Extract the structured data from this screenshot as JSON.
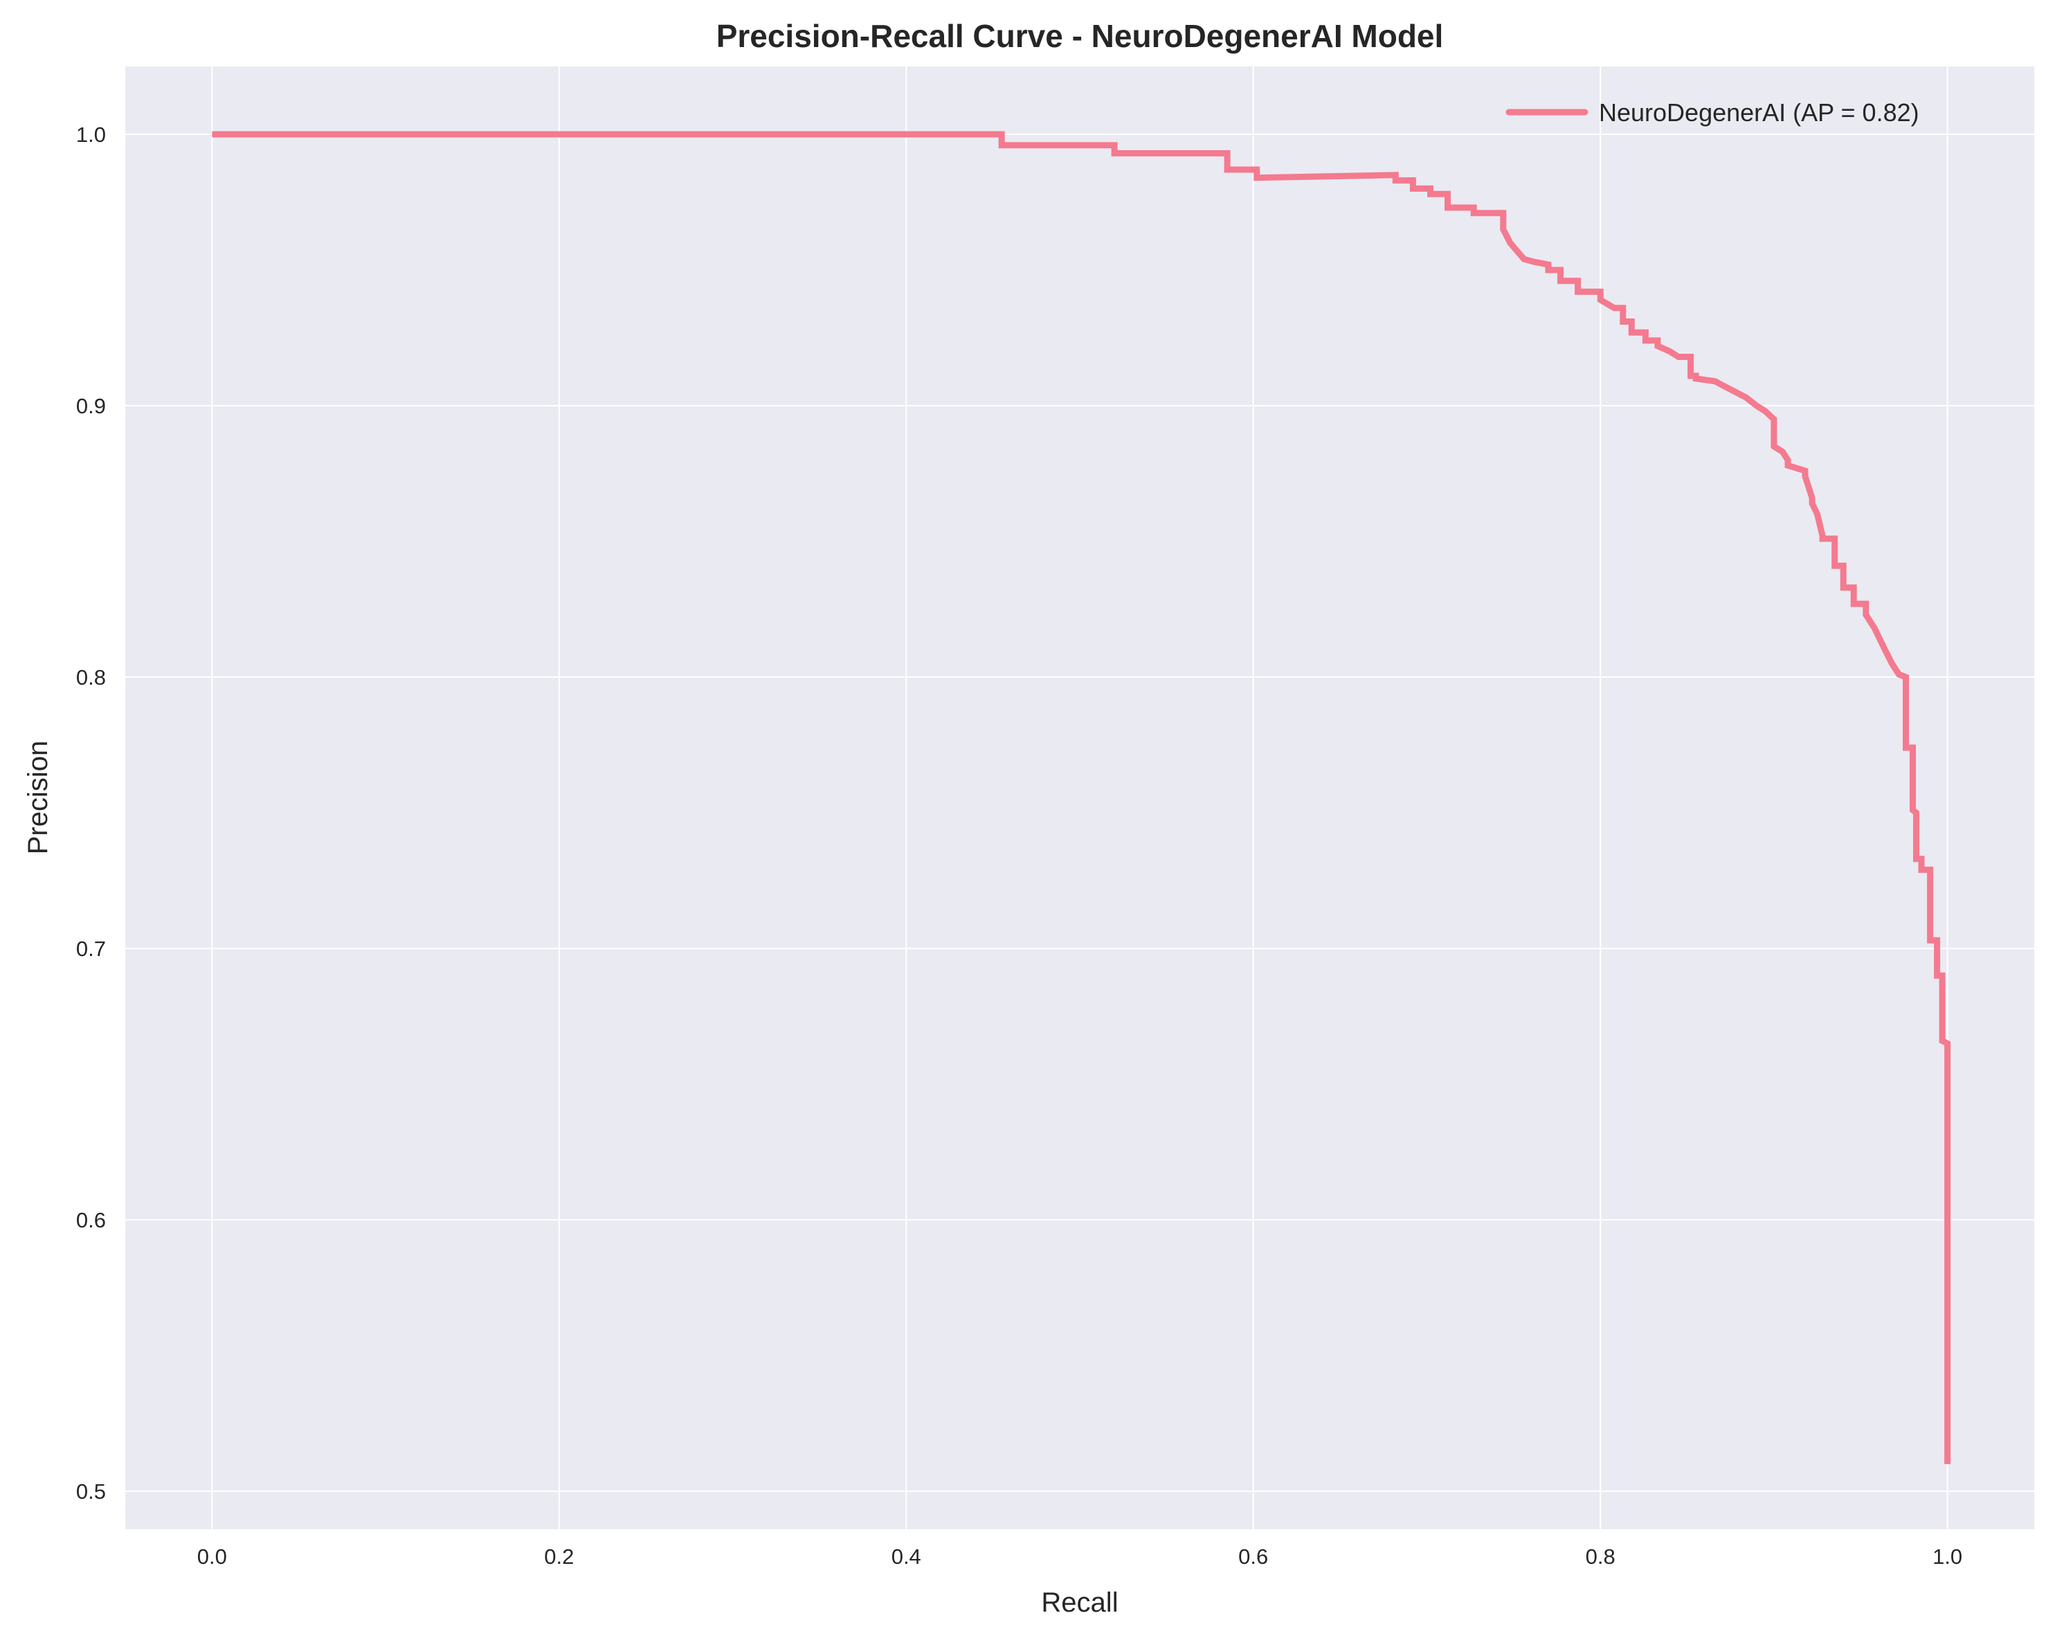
{
  "chart_data": {
    "type": "line",
    "title": "Precision-Recall Curve - NeuroDegenerAI Model",
    "xlabel": "Recall",
    "ylabel": "Precision",
    "xlim": [
      -0.05,
      1.05
    ],
    "ylim": [
      0.486,
      1.025
    ],
    "xticks": [
      0.0,
      0.2,
      0.4,
      0.6,
      0.8,
      1.0
    ],
    "xtick_labels": [
      "0.0",
      "0.2",
      "0.4",
      "0.6",
      "0.8",
      "1.0"
    ],
    "yticks": [
      0.5,
      0.6,
      0.7,
      0.8,
      0.9,
      1.0
    ],
    "ytick_labels": [
      "0.5",
      "0.6",
      "0.7",
      "0.8",
      "0.9",
      "1.0"
    ],
    "grid": true,
    "legend_position": "top-right",
    "colors": {
      "background": "#eaeaf2",
      "grid": "#ffffff",
      "line": "#f47a8f",
      "text": "#262626"
    },
    "series": [
      {
        "name": "NeuroDegenerAI (AP = 0.82)",
        "x": [
          0.0,
          0.455,
          0.455,
          0.52,
          0.52,
          0.585,
          0.585,
          0.602,
          0.602,
          0.682,
          0.682,
          0.692,
          0.692,
          0.702,
          0.702,
          0.712,
          0.712,
          0.727,
          0.727,
          0.744,
          0.744,
          0.748,
          0.752,
          0.756,
          0.762,
          0.77,
          0.77,
          0.777,
          0.777,
          0.787,
          0.787,
          0.8,
          0.8,
          0.808,
          0.813,
          0.813,
          0.818,
          0.818,
          0.826,
          0.826,
          0.833,
          0.833,
          0.84,
          0.845,
          0.852,
          0.852,
          0.855,
          0.855,
          0.866,
          0.872,
          0.878,
          0.884,
          0.89,
          0.895,
          0.9,
          0.9,
          0.905,
          0.908,
          0.908,
          0.918,
          0.918,
          0.922,
          0.922,
          0.925,
          0.928,
          0.928,
          0.935,
          0.935,
          0.94,
          0.94,
          0.946,
          0.946,
          0.953,
          0.953,
          0.958,
          0.961,
          0.964,
          0.968,
          0.972,
          0.976,
          0.976,
          0.98,
          0.98,
          0.982,
          0.982,
          0.985,
          0.985,
          0.99,
          0.99,
          0.994,
          0.994,
          0.997,
          0.997,
          1.0,
          1.0
        ],
        "y": [
          1.0,
          1.0,
          0.996,
          0.996,
          0.993,
          0.993,
          0.987,
          0.987,
          0.984,
          0.985,
          0.983,
          0.983,
          0.98,
          0.98,
          0.978,
          0.978,
          0.973,
          0.973,
          0.971,
          0.971,
          0.965,
          0.96,
          0.957,
          0.954,
          0.953,
          0.952,
          0.95,
          0.95,
          0.946,
          0.946,
          0.942,
          0.942,
          0.939,
          0.936,
          0.936,
          0.931,
          0.931,
          0.927,
          0.927,
          0.924,
          0.924,
          0.922,
          0.92,
          0.918,
          0.918,
          0.911,
          0.911,
          0.91,
          0.909,
          0.907,
          0.905,
          0.903,
          0.9,
          0.898,
          0.895,
          0.885,
          0.883,
          0.88,
          0.878,
          0.876,
          0.874,
          0.866,
          0.864,
          0.86,
          0.852,
          0.851,
          0.851,
          0.841,
          0.841,
          0.833,
          0.833,
          0.827,
          0.827,
          0.823,
          0.818,
          0.814,
          0.81,
          0.805,
          0.801,
          0.8,
          0.774,
          0.774,
          0.751,
          0.75,
          0.733,
          0.733,
          0.729,
          0.729,
          0.703,
          0.703,
          0.69,
          0.69,
          0.666,
          0.665,
          0.51
        ]
      }
    ]
  }
}
